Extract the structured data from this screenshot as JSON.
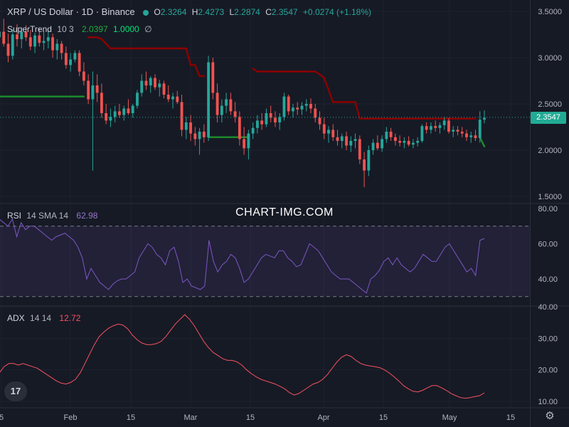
{
  "header": {
    "title": "XRP / US Dollar · 1D · Binance",
    "o_label": "O",
    "o_value": "2.3264",
    "h_label": "H",
    "h_value": "2.4273",
    "l_label": "L",
    "l_value": "2.2874",
    "c_label": "C",
    "c_value": "2.3547",
    "change": "+0.0274 (+1.18%)"
  },
  "supertrend": {
    "name": "SuperTrend",
    "params": "10 3",
    "value": "2.0397",
    "factor": "1.0000",
    "icon": "∅"
  },
  "rsi": {
    "name": "RSI",
    "params": "14 SMA 14",
    "value": "62.98"
  },
  "adx": {
    "name": "ADX",
    "params": "14 14",
    "value": "12.72"
  },
  "watermark": "CHART-IMG.COM",
  "last_price": "2.3547",
  "logo_text": "17",
  "settings_icon": "⚙",
  "colors": {
    "up": "#26a69a",
    "down": "#ef5350",
    "st_up": "#1b8a2c",
    "st_down": "#8b0000",
    "rsi": "#7e57c2",
    "adx": "#f7525f",
    "bg": "#161a25"
  },
  "chart_data": [
    {
      "type": "candlestick",
      "name": "XRP / US Dollar",
      "price_axis": {
        "ticks": [
          "3.5000",
          "3.0000",
          "2.5000",
          "2.0000",
          "1.5000"
        ],
        "range": [
          1.45,
          3.55
        ]
      },
      "time_axis": {
        "ticks": [
          "5",
          "Feb",
          "15",
          "Mar",
          "15",
          "Apr",
          "15",
          "May",
          "15"
        ]
      },
      "ohlc": [
        [
          3.22,
          3.38,
          3.05,
          3.28
        ],
        [
          3.28,
          3.42,
          3.12,
          3.15
        ],
        [
          3.15,
          3.26,
          2.95,
          3.02
        ],
        [
          3.02,
          3.3,
          2.98,
          3.25
        ],
        [
          3.25,
          3.36,
          3.12,
          3.2
        ],
        [
          3.2,
          3.33,
          3.1,
          3.28
        ],
        [
          3.28,
          3.35,
          3.18,
          3.22
        ],
        [
          3.22,
          3.3,
          3.08,
          3.12
        ],
        [
          3.12,
          3.27,
          3.05,
          3.24
        ],
        [
          3.24,
          3.32,
          3.12,
          3.16
        ],
        [
          3.16,
          3.28,
          3.08,
          3.18
        ],
        [
          3.18,
          3.3,
          3.1,
          3.22
        ],
        [
          3.22,
          3.26,
          3.0,
          3.08
        ],
        [
          3.08,
          3.2,
          2.98,
          3.15
        ],
        [
          3.15,
          3.18,
          2.98,
          3.05
        ],
        [
          3.05,
          3.12,
          2.88,
          2.92
        ],
        [
          2.92,
          3.05,
          2.85,
          2.98
        ],
        [
          2.98,
          3.08,
          2.95,
          3.05
        ],
        [
          3.05,
          3.08,
          2.8,
          2.85
        ],
        [
          2.85,
          2.95,
          2.7,
          2.75
        ],
        [
          2.75,
          2.82,
          2.5,
          2.55
        ],
        [
          2.55,
          2.85,
          1.78,
          2.7
        ],
        [
          2.7,
          2.82,
          2.52,
          2.62
        ],
        [
          2.62,
          2.72,
          2.35,
          2.4
        ],
        [
          2.4,
          2.5,
          2.28,
          2.32
        ],
        [
          2.32,
          2.45,
          2.25,
          2.36
        ],
        [
          2.36,
          2.48,
          2.3,
          2.42
        ],
        [
          2.42,
          2.5,
          2.35,
          2.38
        ],
        [
          2.38,
          2.48,
          2.32,
          2.45
        ],
        [
          2.45,
          2.55,
          2.38,
          2.4
        ],
        [
          2.4,
          2.5,
          2.35,
          2.48
        ],
        [
          2.48,
          2.65,
          2.45,
          2.62
        ],
        [
          2.62,
          2.82,
          2.58,
          2.75
        ],
        [
          2.75,
          2.85,
          2.65,
          2.7
        ],
        [
          2.7,
          2.8,
          2.62,
          2.78
        ],
        [
          2.78,
          2.82,
          2.65,
          2.68
        ],
        [
          2.68,
          2.76,
          2.58,
          2.72
        ],
        [
          2.72,
          2.75,
          2.56,
          2.6
        ],
        [
          2.6,
          2.7,
          2.52,
          2.55
        ],
        [
          2.55,
          2.62,
          2.45,
          2.58
        ],
        [
          2.58,
          2.64,
          2.5,
          2.52
        ],
        [
          2.52,
          2.6,
          2.15,
          2.22
        ],
        [
          2.22,
          2.36,
          2.12,
          2.3
        ],
        [
          2.3,
          2.38,
          2.1,
          2.18
        ],
        [
          2.18,
          2.25,
          2.05,
          2.12
        ],
        [
          2.12,
          2.24,
          1.95,
          2.2
        ],
        [
          2.2,
          2.28,
          2.08,
          2.14
        ],
        [
          2.14,
          3.02,
          2.1,
          2.95
        ],
        [
          2.95,
          3.0,
          2.55,
          2.62
        ],
        [
          2.62,
          2.72,
          2.3,
          2.38
        ],
        [
          2.38,
          2.55,
          2.3,
          2.48
        ],
        [
          2.48,
          2.62,
          2.4,
          2.55
        ],
        [
          2.55,
          2.62,
          2.38,
          2.42
        ],
        [
          2.42,
          2.52,
          2.3,
          2.36
        ],
        [
          2.36,
          2.42,
          2.05,
          2.12
        ],
        [
          2.12,
          2.25,
          1.95,
          2.02
        ],
        [
          2.02,
          2.22,
          1.9,
          2.18
        ],
        [
          2.18,
          2.3,
          2.12,
          2.24
        ],
        [
          2.24,
          2.38,
          2.18,
          2.32
        ],
        [
          2.32,
          2.4,
          2.22,
          2.28
        ],
        [
          2.28,
          2.45,
          2.25,
          2.4
        ],
        [
          2.4,
          2.48,
          2.3,
          2.35
        ],
        [
          2.35,
          2.42,
          2.25,
          2.3
        ],
        [
          2.3,
          2.4,
          2.22,
          2.36
        ],
        [
          2.36,
          2.62,
          2.32,
          2.58
        ],
        [
          2.58,
          2.6,
          2.38,
          2.42
        ],
        [
          2.42,
          2.5,
          2.35,
          2.46
        ],
        [
          2.46,
          2.52,
          2.38,
          2.44
        ],
        [
          2.44,
          2.52,
          2.38,
          2.48
        ],
        [
          2.48,
          2.55,
          2.42,
          2.5
        ],
        [
          2.5,
          2.56,
          2.4,
          2.45
        ],
        [
          2.45,
          2.5,
          2.3,
          2.35
        ],
        [
          2.35,
          2.42,
          2.22,
          2.28
        ],
        [
          2.28,
          2.35,
          2.12,
          2.18
        ],
        [
          2.18,
          2.26,
          2.08,
          2.22
        ],
        [
          2.22,
          2.28,
          2.1,
          2.14
        ],
        [
          2.14,
          2.22,
          2.05,
          2.1
        ],
        [
          2.1,
          2.18,
          2.02,
          2.15
        ],
        [
          2.15,
          2.2,
          2.0,
          2.05
        ],
        [
          2.05,
          2.15,
          1.98,
          2.1
        ],
        [
          2.1,
          2.18,
          2.02,
          2.12
        ],
        [
          2.12,
          2.16,
          1.85,
          1.9
        ],
        [
          1.9,
          1.98,
          1.6,
          1.78
        ],
        [
          1.78,
          2.05,
          1.72,
          2.0
        ],
        [
          2.0,
          2.12,
          1.95,
          2.08
        ],
        [
          2.08,
          2.16,
          2.0,
          2.02
        ],
        [
          2.02,
          2.16,
          1.98,
          2.12
        ],
        [
          2.12,
          2.25,
          2.08,
          2.2
        ],
        [
          2.2,
          2.24,
          2.1,
          2.14
        ],
        [
          2.14,
          2.18,
          2.05,
          2.1
        ],
        [
          2.1,
          2.16,
          2.04,
          2.08
        ],
        [
          2.08,
          2.14,
          2.02,
          2.1
        ],
        [
          2.1,
          2.15,
          2.04,
          2.06
        ],
        [
          2.06,
          2.12,
          2.02,
          2.08
        ],
        [
          2.08,
          2.14,
          2.04,
          2.1
        ],
        [
          2.1,
          2.28,
          2.08,
          2.26
        ],
        [
          2.26,
          2.3,
          2.18,
          2.22
        ],
        [
          2.22,
          2.3,
          2.18,
          2.26
        ],
        [
          2.26,
          2.32,
          2.2,
          2.24
        ],
        [
          2.24,
          2.3,
          2.18,
          2.27
        ],
        [
          2.27,
          2.36,
          2.22,
          2.32
        ],
        [
          2.32,
          2.35,
          2.18,
          2.2
        ],
        [
          2.2,
          2.26,
          2.14,
          2.22
        ],
        [
          2.22,
          2.26,
          2.16,
          2.2
        ],
        [
          2.2,
          2.25,
          2.14,
          2.18
        ],
        [
          2.18,
          2.22,
          2.1,
          2.14
        ],
        [
          2.14,
          2.2,
          2.08,
          2.16
        ],
        [
          2.16,
          2.22,
          2.1,
          2.13
        ],
        [
          2.13,
          2.42,
          2.08,
          2.33
        ],
        [
          2.33,
          2.43,
          2.29,
          2.35
        ]
      ],
      "supertrend": [
        2.58,
        2.58,
        2.58,
        2.58,
        2.58,
        2.58,
        2.58,
        2.58,
        2.58,
        2.58,
        2.58,
        2.58,
        2.58,
        2.58,
        2.58,
        2.58,
        2.58,
        2.58,
        2.58,
        2.58,
        3.22,
        3.22,
        3.22,
        3.2,
        3.15,
        3.1,
        3.1,
        3.1,
        3.1,
        3.1,
        3.1,
        3.1,
        3.1,
        3.1,
        3.1,
        3.1,
        3.1,
        3.1,
        3.1,
        3.1,
        3.1,
        3.1,
        3.1,
        2.92,
        2.92,
        2.8,
        2.8,
        2.14,
        2.14,
        2.14,
        2.14,
        2.14,
        2.14,
        2.14,
        2.14,
        2.14,
        2.14,
        2.88,
        2.85,
        2.85,
        2.85,
        2.85,
        2.85,
        2.85,
        2.85,
        2.85,
        2.85,
        2.85,
        2.85,
        2.85,
        2.85,
        2.85,
        2.82,
        2.78,
        2.65,
        2.52,
        2.52,
        2.52,
        2.52,
        2.52,
        2.52,
        2.34,
        2.34,
        2.34,
        2.34,
        2.34,
        2.34,
        2.34,
        2.34,
        2.34,
        2.34,
        2.34,
        2.34,
        2.34,
        2.34,
        2.34,
        2.34,
        2.34,
        2.34,
        2.34,
        2.34,
        2.34,
        2.34,
        2.34,
        2.34,
        2.34,
        2.34,
        2.34,
        2.14,
        2.04
      ],
      "supertrend_direction": [
        "up",
        "up",
        "up",
        "up",
        "up",
        "up",
        "up",
        "up",
        "up",
        "up",
        "up",
        "up",
        "up",
        "up",
        "up",
        "up",
        "up",
        "up",
        "up",
        "up",
        "down",
        "down",
        "down",
        "down",
        "down",
        "down",
        "down",
        "down",
        "down",
        "down",
        "down",
        "down",
        "down",
        "down",
        "down",
        "down",
        "down",
        "down",
        "down",
        "down",
        "down",
        "down",
        "down",
        "down",
        "down",
        "down",
        "down",
        "up",
        "up",
        "up",
        "up",
        "up",
        "up",
        "up",
        "up",
        "up",
        "up",
        "down",
        "down",
        "down",
        "down",
        "down",
        "down",
        "down",
        "down",
        "down",
        "down",
        "down",
        "down",
        "down",
        "down",
        "down",
        "down",
        "down",
        "down",
        "down",
        "down",
        "down",
        "down",
        "down",
        "down",
        "down",
        "down",
        "down",
        "down",
        "down",
        "down",
        "down",
        "down",
        "down",
        "down",
        "down",
        "down",
        "down",
        "down",
        "down",
        "down",
        "down",
        "down",
        "down",
        "down",
        "down",
        "down",
        "down",
        "down",
        "down",
        "down",
        "down",
        "up",
        "up"
      ]
    },
    {
      "type": "line",
      "name": "RSI",
      "y_axis": {
        "ticks": [
          "80.00",
          "60.00",
          "40.00"
        ],
        "range": [
          26,
          80
        ],
        "bands": [
          70,
          30
        ]
      },
      "values": [
        74,
        72,
        70,
        74,
        64,
        72,
        68,
        70,
        70,
        68,
        66,
        64,
        62,
        64,
        65,
        66,
        64,
        62,
        58,
        52,
        40,
        46,
        42,
        38,
        36,
        34,
        37,
        39,
        40,
        40,
        42,
        44,
        52,
        56,
        60,
        58,
        54,
        52,
        48,
        56,
        58,
        50,
        38,
        40,
        36,
        35,
        34,
        36,
        62,
        50,
        44,
        48,
        50,
        54,
        52,
        46,
        38,
        40,
        44,
        48,
        52,
        54,
        53,
        52,
        56,
        56,
        52,
        50,
        47,
        48,
        54,
        60,
        58,
        56,
        52,
        48,
        44,
        42,
        40,
        40,
        40,
        38,
        36,
        34,
        32,
        40,
        42,
        45,
        50,
        52,
        48,
        52,
        48,
        46,
        44,
        46,
        50,
        54,
        52,
        50,
        50,
        54,
        58,
        60,
        56,
        52,
        48,
        44,
        46,
        42,
        62,
        63
      ]
    },
    {
      "type": "line",
      "name": "ADX",
      "y_axis": {
        "ticks": [
          "40.00",
          "30.00",
          "20.00",
          "10.00"
        ],
        "range": [
          8,
          40
        ]
      },
      "values": [
        19,
        21,
        22,
        22,
        21.5,
        22,
        21.5,
        21,
        20.5,
        19.5,
        18.5,
        17.5,
        16.5,
        15.8,
        15.5,
        16,
        17,
        19,
        22,
        25,
        28,
        30.5,
        32,
        33.2,
        34,
        34.5,
        34.2,
        33,
        31,
        29.5,
        28.5,
        28,
        28,
        28.3,
        29,
        30.5,
        32.5,
        34.5,
        36,
        37.5,
        36,
        34,
        31.5,
        29,
        27,
        25.5,
        24.5,
        23.5,
        23,
        23,
        22.5,
        21.5,
        20,
        18.8,
        17.8,
        17,
        16.5,
        16,
        15.5,
        14.8,
        14,
        12.8,
        12,
        12.5,
        13.5,
        14.5,
        15.5,
        16,
        17,
        18.5,
        20.5,
        22.5,
        24,
        24.8,
        24.2,
        23,
        22,
        21.5,
        21.2,
        21,
        20.7,
        20,
        19,
        17.8,
        16.5,
        15,
        14,
        13.2,
        13,
        13.5,
        14.3,
        15,
        15,
        14.3,
        13.5,
        12.5,
        11.8,
        11.2,
        11,
        11.2,
        11.5,
        11.8,
        12.7
      ]
    }
  ]
}
